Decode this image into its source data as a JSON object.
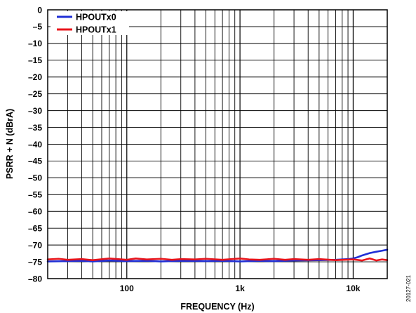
{
  "chart_data": {
    "type": "line",
    "title": "",
    "xlabel": "FREQUENCY (Hz)",
    "ylabel": "PSRR + N (dBrA)",
    "x_scale": "log",
    "xlim": [
      20,
      20000
    ],
    "ylim": [
      -80,
      0
    ],
    "grid": true,
    "legend_position": "top-left",
    "x_ticks": [
      {
        "value": 100,
        "label": "100"
      },
      {
        "value": 1000,
        "label": "1k"
      },
      {
        "value": 10000,
        "label": "10k"
      }
    ],
    "y_ticks": [
      {
        "value": 0,
        "label": "0"
      },
      {
        "value": -5,
        "label": "–5"
      },
      {
        "value": -10,
        "label": "–10"
      },
      {
        "value": -15,
        "label": "–15"
      },
      {
        "value": -20,
        "label": "–20"
      },
      {
        "value": -25,
        "label": "–25"
      },
      {
        "value": -30,
        "label": "–30"
      },
      {
        "value": -35,
        "label": "–35"
      },
      {
        "value": -40,
        "label": "–40"
      },
      {
        "value": -45,
        "label": "–45"
      },
      {
        "value": -50,
        "label": "–50"
      },
      {
        "value": -55,
        "label": "–55"
      },
      {
        "value": -60,
        "label": "–60"
      },
      {
        "value": -65,
        "label": "–65"
      },
      {
        "value": -70,
        "label": "–70"
      },
      {
        "value": -75,
        "label": "–75"
      },
      {
        "value": -80,
        "label": "–80"
      }
    ],
    "series": [
      {
        "name": "HPOUTx0",
        "color": "#1f2fd6",
        "x": [
          20,
          30,
          40,
          50,
          70,
          100,
          150,
          200,
          300,
          500,
          700,
          1000,
          1500,
          2000,
          3000,
          5000,
          7000,
          9000,
          10000,
          11000,
          12000,
          14000,
          16000,
          18000,
          20000
        ],
        "y": [
          -74.9,
          -74.8,
          -74.7,
          -74.9,
          -74.6,
          -74.8,
          -74.7,
          -74.9,
          -74.7,
          -74.8,
          -74.7,
          -74.9,
          -74.7,
          -74.8,
          -74.6,
          -74.5,
          -74.4,
          -74.2,
          -74.0,
          -73.6,
          -73.1,
          -72.4,
          -72.0,
          -71.7,
          -71.4
        ]
      },
      {
        "name": "HPOUTx1",
        "color": "#e8141b",
        "x": [
          20,
          25,
          30,
          40,
          50,
          70,
          100,
          120,
          150,
          200,
          250,
          300,
          400,
          500,
          700,
          1000,
          1200,
          1500,
          2000,
          2500,
          3000,
          4000,
          5000,
          7000,
          10000,
          12000,
          14000,
          16000,
          18000,
          20000
        ],
        "y": [
          -74.3,
          -74.1,
          -74.4,
          -74.2,
          -74.5,
          -74.0,
          -74.4,
          -74.0,
          -74.3,
          -74.1,
          -74.4,
          -74.2,
          -74.3,
          -74.1,
          -74.4,
          -74.0,
          -74.3,
          -74.4,
          -74.1,
          -74.4,
          -74.2,
          -74.4,
          -74.2,
          -74.5,
          -74.3,
          -74.6,
          -74.0,
          -74.6,
          -74.3,
          -74.5
        ]
      }
    ]
  },
  "figure_id": "20127-021"
}
